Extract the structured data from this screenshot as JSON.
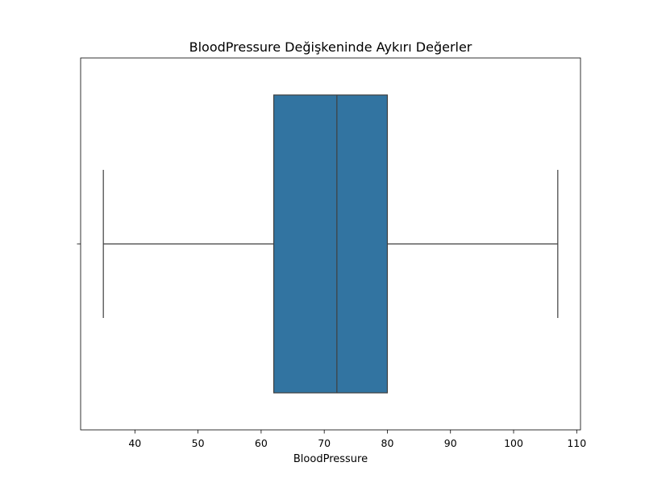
{
  "chart_data": {
    "type": "box",
    "title": "BloodPressure Değişkeninde Aykırı Değerler",
    "xlabel": "BloodPressure",
    "ylabel": "",
    "xlim": [
      31.4,
      110.6
    ],
    "xticks": [
      40,
      50,
      60,
      70,
      80,
      90,
      100,
      110
    ],
    "xtick_labels": [
      "40",
      "50",
      "60",
      "70",
      "80",
      "90",
      "100",
      "110"
    ],
    "orientation": "horizontal",
    "box": {
      "whisker_low": 35,
      "q1": 62,
      "median": 72,
      "q3": 80,
      "whisker_high": 107
    },
    "outliers": [],
    "box_color": "#3274a1",
    "line_color": "#3f3f3f",
    "grid": false
  }
}
